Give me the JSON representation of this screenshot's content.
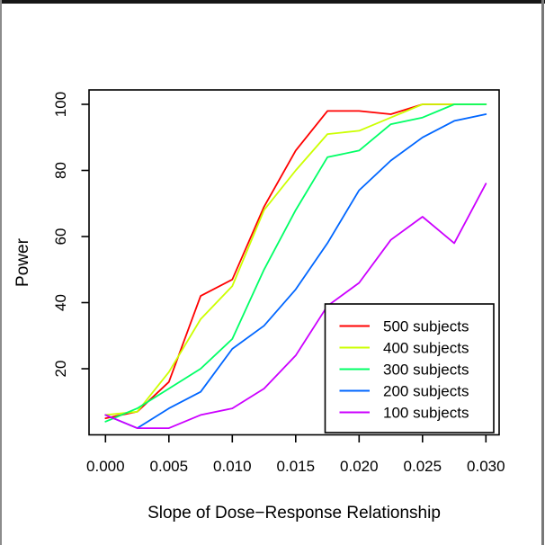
{
  "chart_data": {
    "type": "line",
    "title": "",
    "xlabel": "Slope of Dose−Response Relationship",
    "ylabel": "Power",
    "xlim": [
      0,
      0.03
    ],
    "ylim": [
      0,
      104
    ],
    "grid": false,
    "x": [
      0,
      0.0025,
      0.005,
      0.0075,
      0.01,
      0.0125,
      0.015,
      0.0175,
      0.02,
      0.0225,
      0.025,
      0.0275,
      0.03
    ],
    "x_ticks": {
      "values": [
        0,
        0.005,
        0.01,
        0.015,
        0.02,
        0.025,
        0.03
      ],
      "labels": [
        "0.000",
        "0.005",
        "0.010",
        "0.015",
        "0.020",
        "0.025",
        "0.030"
      ]
    },
    "y_ticks": {
      "values": [
        20,
        40,
        60,
        80,
        100
      ],
      "labels": [
        "20",
        "40",
        "60",
        "80",
        "100"
      ]
    },
    "series": [
      {
        "name": "500 subjects",
        "color": "#FF0000",
        "values": [
          5,
          7,
          16,
          42,
          47,
          69,
          86,
          98,
          98,
          97,
          100,
          100,
          100
        ]
      },
      {
        "name": "400 subjects",
        "color": "#CCFF00",
        "values": [
          6,
          7,
          19,
          35,
          45,
          68,
          80,
          91,
          92,
          96,
          100,
          100,
          100
        ]
      },
      {
        "name": "300 subjects",
        "color": "#00FF66",
        "values": [
          4,
          8,
          14,
          20,
          29,
          50,
          68,
          84,
          86,
          94,
          96,
          100,
          100
        ]
      },
      {
        "name": "200 subjects",
        "color": "#0066FF",
        "values": [
          6,
          2,
          8,
          13,
          26,
          33,
          44,
          58,
          74,
          83,
          90,
          95,
          97
        ]
      },
      {
        "name": "100 subjects",
        "color": "#CC00FF",
        "values": [
          6,
          2,
          2,
          6,
          8,
          14,
          24,
          39,
          46,
          59,
          66,
          58,
          76
        ]
      }
    ],
    "legend": {
      "position": "bottomright",
      "entries": [
        "500 subjects",
        "400 subjects",
        "300 subjects",
        "200 subjects",
        "100 subjects"
      ]
    }
  }
}
